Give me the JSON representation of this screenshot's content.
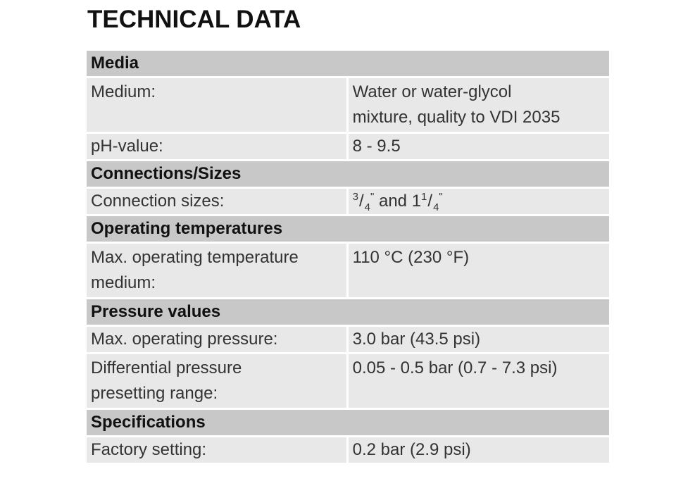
{
  "title": "TECHNICAL DATA",
  "sections": [
    {
      "heading": "Media",
      "rows": [
        {
          "label": "Medium:",
          "value_line1": "Water or water-glycol",
          "value_line2": "mixture, quality to VDI 2035"
        },
        {
          "label": "pH-value:",
          "value_line1": "8 - 9.5"
        }
      ]
    },
    {
      "heading": "Connections/Sizes",
      "rows": [
        {
          "label": "Connection sizes:",
          "value_frac": {
            "n1": "3",
            "d1": "4",
            "mark": "\"",
            "and": " and 1",
            "n2": "1",
            "d2": "4"
          }
        }
      ]
    },
    {
      "heading": "Operating temperatures",
      "rows": [
        {
          "label_line1": "Max. operating temperature",
          "label_line2": "medium:",
          "value_line1": "110 °C (230 °F)"
        }
      ]
    },
    {
      "heading": "Pressure values",
      "rows": [
        {
          "label": "Max. operating pressure:",
          "value_line1": "3.0 bar (43.5 psi)"
        },
        {
          "label_line1": "Differential pressure",
          "label_line2": "presetting range:",
          "value_line1": "0.05 - 0.5 bar (0.7 - 7.3 psi)"
        }
      ]
    },
    {
      "heading": "Specifications",
      "rows": [
        {
          "label": "Factory setting:",
          "value_line1": "0.2 bar (2.9 psi)"
        }
      ]
    }
  ]
}
